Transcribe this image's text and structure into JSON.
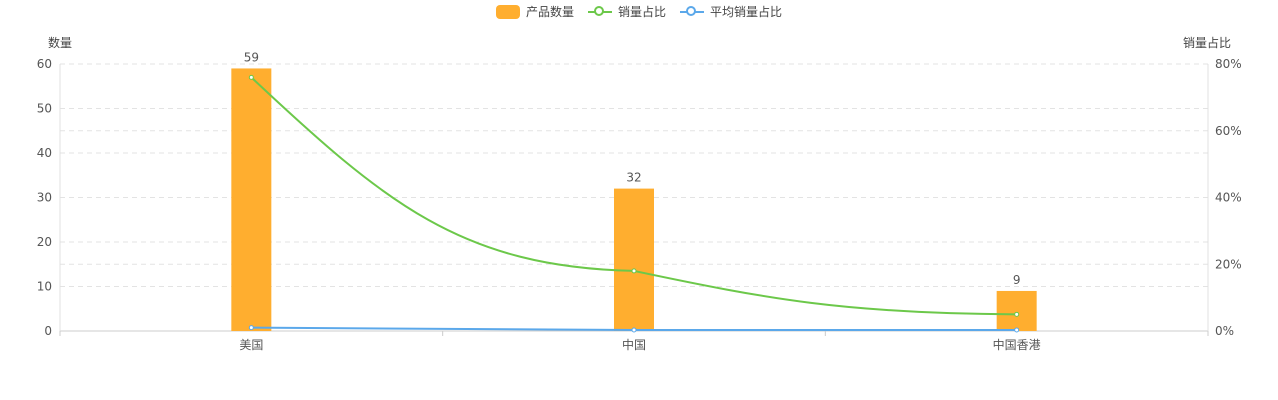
{
  "legend": {
    "bar": "产品数量",
    "line1": "销量占比",
    "line2": "平均销量占比"
  },
  "axis_names": {
    "left": "数量",
    "right": "销量占比"
  },
  "colors": {
    "bar": "#FFAE2F",
    "line1": "#6CC84A",
    "line2": "#5BA8EA",
    "grid": "#E3E3E3",
    "text": "#555555"
  },
  "chart_data": {
    "type": "bar+line",
    "categories": [
      "美国",
      "中国",
      "中国香港"
    ],
    "series": [
      {
        "name": "产品数量",
        "type": "bar",
        "axis": "left",
        "values": [
          59,
          32,
          9
        ],
        "data_labels": [
          "59",
          "32",
          "9"
        ]
      },
      {
        "name": "销量占比",
        "type": "line",
        "axis": "right",
        "smooth": true,
        "values": [
          0.76,
          0.18,
          0.05
        ]
      },
      {
        "name": "平均销量占比",
        "type": "line",
        "axis": "right",
        "values": [
          0.01,
          0.003,
          0.003
        ]
      }
    ],
    "left_axis": {
      "min": 0,
      "max": 60,
      "ticks": [
        0,
        10,
        20,
        30,
        40,
        50,
        60
      ]
    },
    "right_axis": {
      "min": 0,
      "max": 0.8,
      "ticks": [
        0,
        0.2,
        0.4,
        0.6,
        0.8
      ],
      "tick_labels": [
        "0%",
        "20%",
        "40%",
        "60%",
        "80%"
      ]
    },
    "grid": true,
    "legend_position": "top-center"
  }
}
